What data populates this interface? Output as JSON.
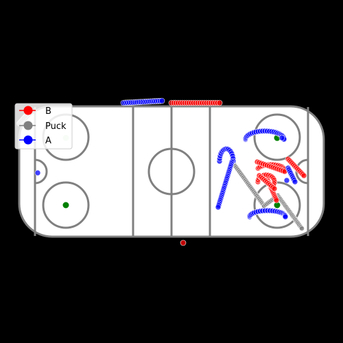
{
  "legend": {
    "items": [
      {
        "label": "B",
        "color": "#ff0000"
      },
      {
        "label": "Puck",
        "color": "#808080"
      },
      {
        "label": "A",
        "color": "#0000ff"
      }
    ]
  },
  "colors": {
    "team_b": "#ff0000",
    "puck": "#808080",
    "team_a": "#0000ff",
    "faceoff_dot": "#008000",
    "rink_lines": "#808080",
    "background": "#000000",
    "ice": "#ffffff"
  }
}
